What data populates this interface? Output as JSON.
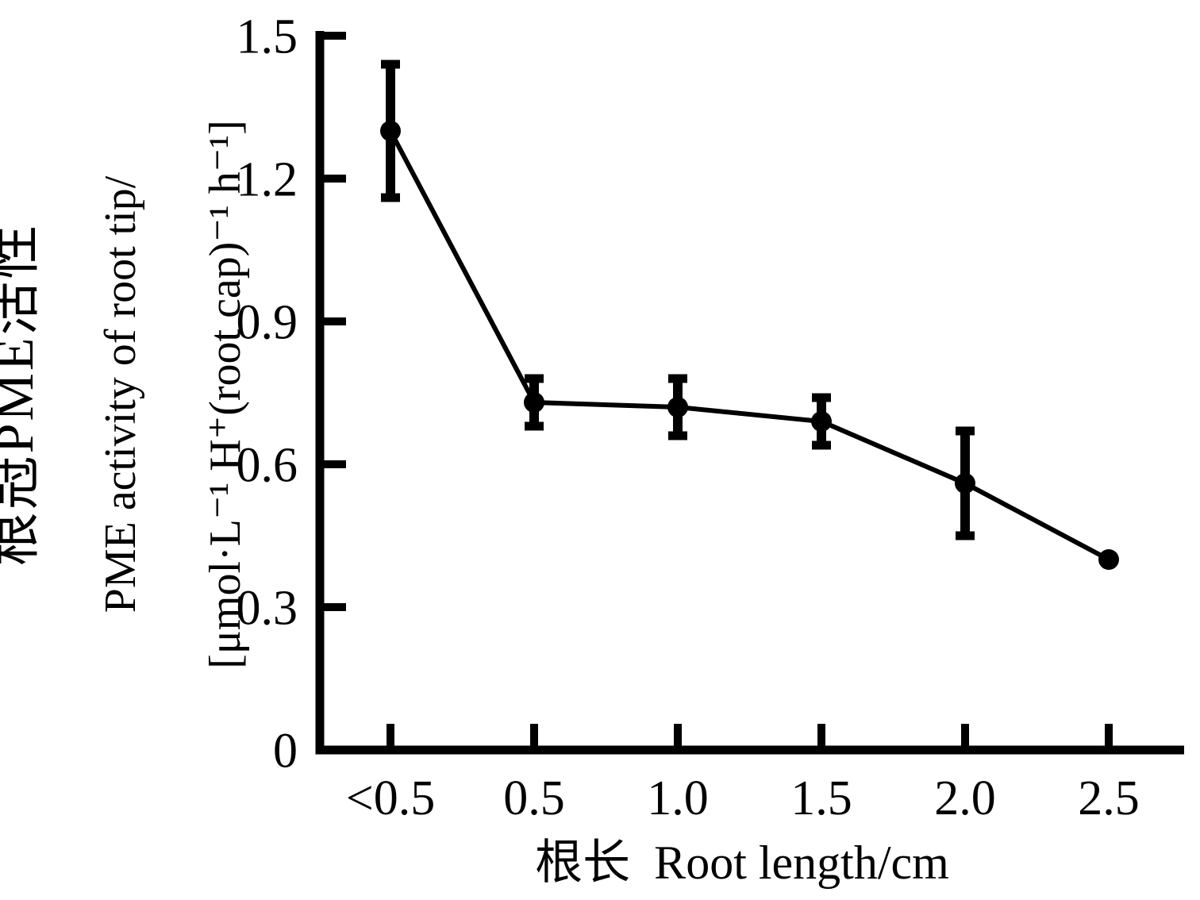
{
  "figure": {
    "background": "#ffffff",
    "ink": "#000000"
  },
  "chart_data": {
    "type": "line",
    "categories": [
      "<0.5",
      "0.5",
      "1.0",
      "1.5",
      "2.0",
      "2.5"
    ],
    "values": [
      1.3,
      0.73,
      0.72,
      0.69,
      0.56,
      0.4
    ],
    "errors": [
      0.14,
      0.05,
      0.06,
      0.05,
      0.11,
      0
    ],
    "title": "",
    "xlabel": "根长  Root length/cm",
    "ylabel_zh": "根冠PME活性",
    "ylabel_en": "PME activity of root tip/",
    "ylabel_unit": "[μmol·L⁻¹ H⁺(root cap)⁻¹ h⁻¹]",
    "ylim": [
      0,
      1.5
    ],
    "yticks": [
      0,
      0.3,
      0.6,
      0.9,
      1.2,
      1.5
    ],
    "ytick_labels": [
      "0",
      "0.3",
      "0.6",
      "0.9",
      "1.2",
      "1.5"
    ],
    "grid": false,
    "legend": "none",
    "marker": "filled-circle",
    "error_bar_caps": true,
    "line_color": "#000000"
  }
}
